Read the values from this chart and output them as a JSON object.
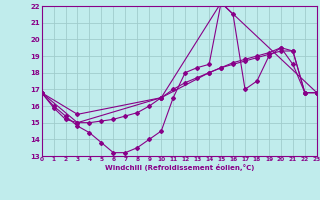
{
  "xlabel": "Windchill (Refroidissement éolien,°C)",
  "xlim": [
    0,
    23
  ],
  "ylim": [
    13,
    22
  ],
  "xticks": [
    0,
    1,
    2,
    3,
    4,
    5,
    6,
    7,
    8,
    9,
    10,
    11,
    12,
    13,
    14,
    15,
    16,
    17,
    18,
    19,
    20,
    21,
    22,
    23
  ],
  "yticks": [
    13,
    14,
    15,
    16,
    17,
    18,
    19,
    20,
    21,
    22
  ],
  "line_color": "#880088",
  "bg_color": "#c0ecec",
  "grid_color": "#a0cccc",
  "lines": [
    {
      "x": [
        0,
        1,
        2,
        3,
        4,
        5,
        6,
        7,
        8,
        9,
        10,
        11,
        12,
        13,
        14,
        15,
        16,
        17,
        18,
        19,
        20,
        21,
        22,
        23
      ],
      "y": [
        16.8,
        16.0,
        15.4,
        14.8,
        14.4,
        13.8,
        13.2,
        13.2,
        13.5,
        14.0,
        14.5,
        16.5,
        18.0,
        18.3,
        18.5,
        22.2,
        21.5,
        17.0,
        17.5,
        19.0,
        19.5,
        18.5,
        16.8,
        16.8
      ]
    },
    {
      "x": [
        0,
        1,
        2,
        3,
        4,
        5,
        6,
        7,
        8,
        9,
        10,
        11,
        12,
        13,
        14,
        15,
        16,
        17,
        18,
        19,
        20,
        21,
        22,
        23
      ],
      "y": [
        16.8,
        15.9,
        15.2,
        15.0,
        15.0,
        15.1,
        15.2,
        15.4,
        15.6,
        16.0,
        16.5,
        17.0,
        17.4,
        17.7,
        18.0,
        18.3,
        18.5,
        18.7,
        18.9,
        19.1,
        19.3,
        19.3,
        16.8,
        16.8
      ]
    },
    {
      "x": [
        0,
        3,
        10,
        15,
        23
      ],
      "y": [
        16.8,
        15.0,
        16.5,
        22.2,
        16.8
      ]
    },
    {
      "x": [
        0,
        3,
        10,
        14,
        15,
        16,
        17,
        18,
        19,
        20,
        21,
        22,
        23
      ],
      "y": [
        16.8,
        15.5,
        16.5,
        18.0,
        18.3,
        18.6,
        18.8,
        19.0,
        19.2,
        19.5,
        19.3,
        16.8,
        16.8
      ]
    }
  ]
}
